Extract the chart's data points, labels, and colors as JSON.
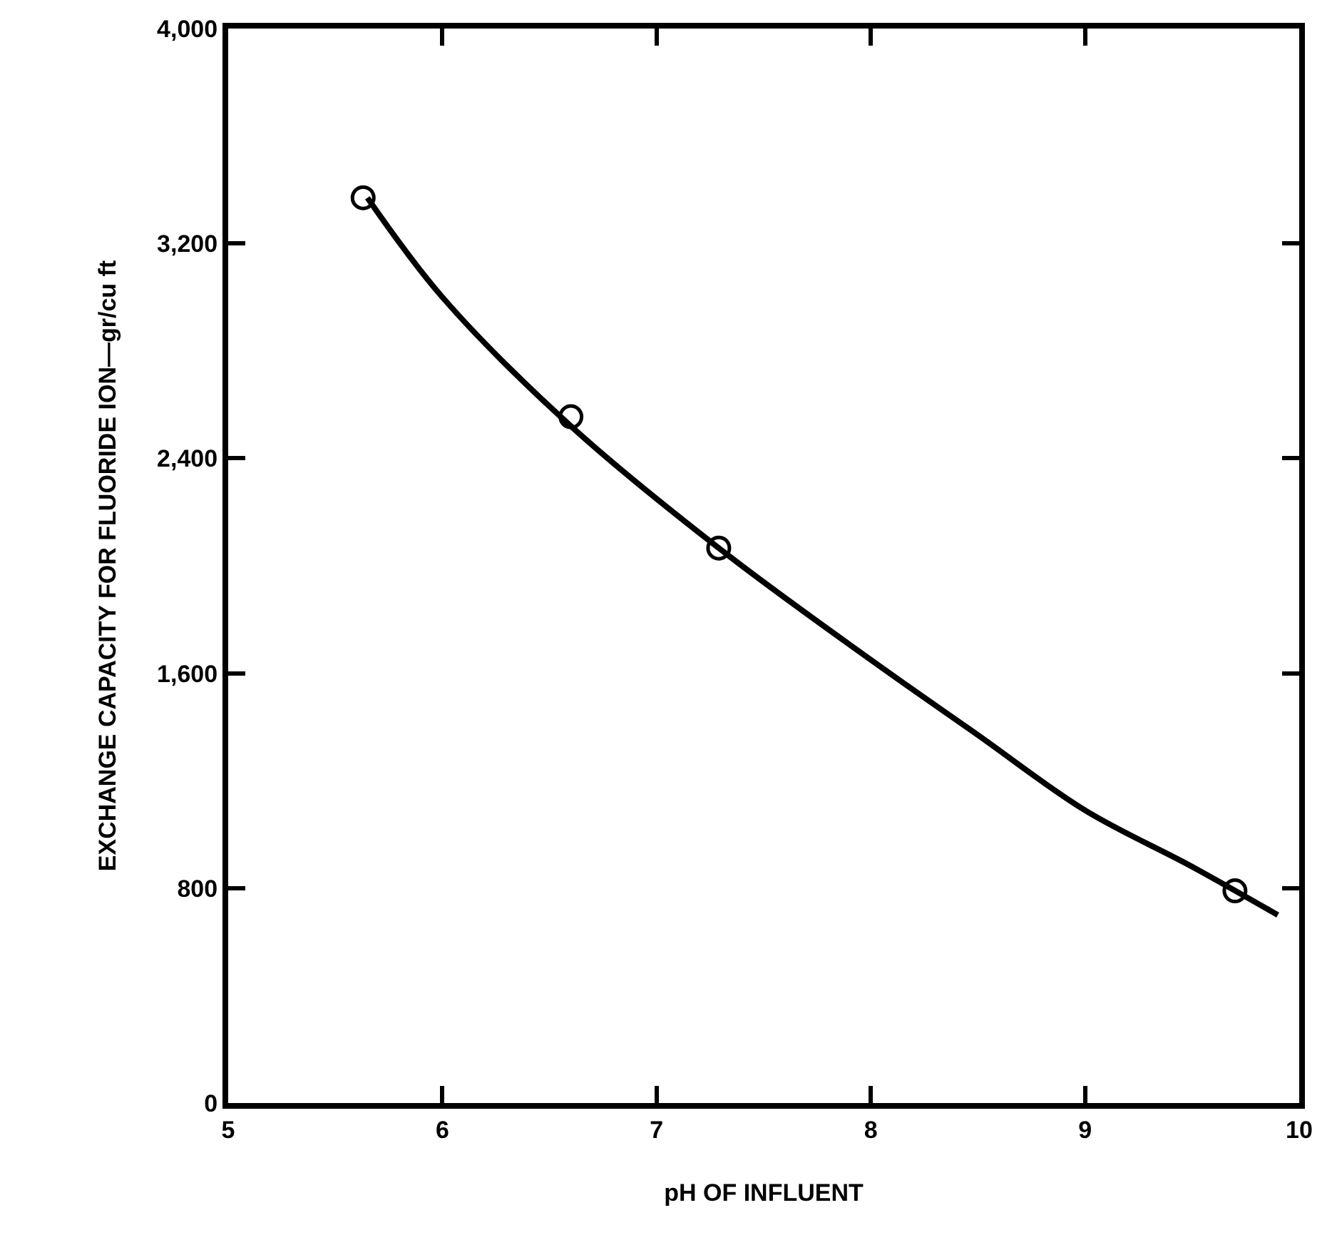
{
  "chart_data": {
    "type": "scatter",
    "xlabel": "pH OF INFLUENT",
    "ylabel": "EXCHANGE CAPACITY FOR FLUORIDE ION—gr/cu ft",
    "xlim": [
      5,
      10
    ],
    "xticks": [
      5,
      6,
      7,
      8,
      9,
      10
    ],
    "ylim": [
      0,
      4000
    ],
    "yticks": [
      0,
      {
        "value": 800,
        "label": "800"
      },
      {
        "value": 1600,
        "label": "1,600"
      },
      {
        "value": 2400,
        "label": "2,400"
      },
      {
        "value": 3200,
        "label": "3,200"
      },
      {
        "value": 4000,
        "label": "4,000"
      }
    ],
    "series": [
      {
        "type": "line",
        "color": "#000000",
        "marker": "none",
        "line_style": "solid",
        "x": [
          5.65,
          6.0,
          6.6,
          7.3,
          8.0,
          8.5,
          9.0,
          9.5,
          9.9
        ],
        "values": [
          3370,
          3000,
          2520,
          2060,
          1650,
          1370,
          1090,
          880,
          700
        ]
      },
      {
        "color": "#000000",
        "marker": "circle",
        "x": [
          5.63,
          6.6,
          7.29,
          9.7
        ],
        "values": [
          3370,
          2555,
          2066,
          790
        ]
      }
    ]
  }
}
